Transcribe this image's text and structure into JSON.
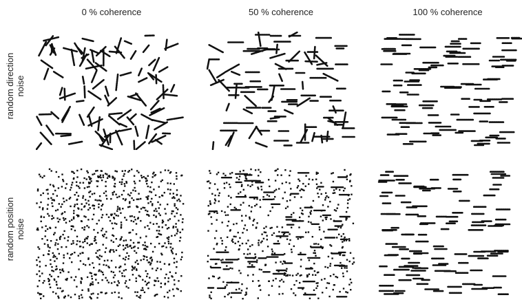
{
  "columns": [
    {
      "label": "0 % coherence",
      "coherence": 0
    },
    {
      "label": "50 % coherence",
      "coherence": 50
    },
    {
      "label": "100 % coherence",
      "coherence": 100
    }
  ],
  "rows": [
    {
      "label_line1": "random direction",
      "label_line2": "noise",
      "kind": "direction"
    },
    {
      "label_line1": "random position",
      "label_line2": "noise",
      "kind": "position"
    }
  ],
  "colors": {
    "dot": "#111111",
    "background": "#ffffff"
  }
}
